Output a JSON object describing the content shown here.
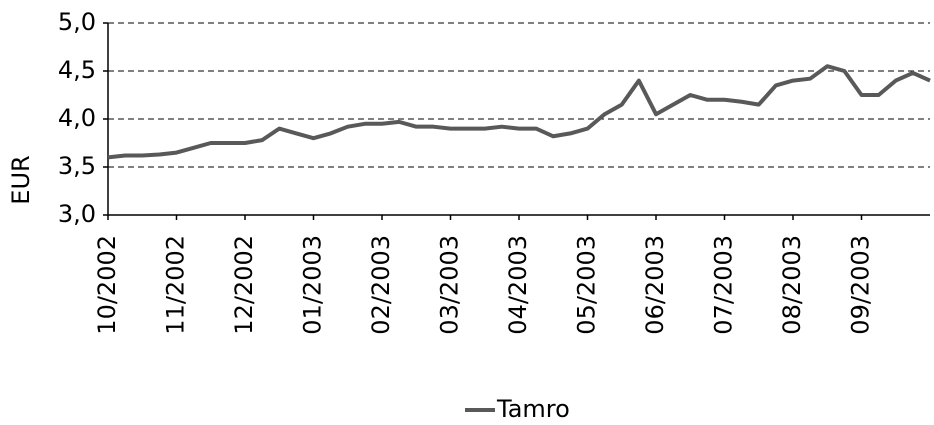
{
  "chart_data": {
    "type": "line",
    "y_label": "EUR",
    "categories": [
      "10/2002",
      null,
      null,
      null,
      "11/2002",
      null,
      null,
      null,
      "12/2002",
      null,
      null,
      null,
      "01/2003",
      null,
      null,
      null,
      "02/2003",
      null,
      null,
      null,
      "03/2003",
      null,
      null,
      null,
      "04/2003",
      null,
      null,
      null,
      "05/2003",
      null,
      null,
      null,
      "06/2003",
      null,
      null,
      null,
      "07/2003",
      null,
      null,
      null,
      "08/2003",
      null,
      null,
      null,
      "09/2003",
      null,
      null,
      null,
      null
    ],
    "series": [
      {
        "name": "Tamro",
        "color": "#595959",
        "values": [
          3.6,
          3.62,
          3.62,
          3.63,
          3.65,
          3.7,
          3.75,
          3.75,
          3.75,
          3.78,
          3.9,
          3.85,
          3.8,
          3.85,
          3.92,
          3.95,
          3.95,
          3.97,
          3.92,
          3.92,
          3.9,
          3.9,
          3.9,
          3.92,
          3.9,
          3.9,
          3.82,
          3.85,
          3.9,
          4.05,
          4.15,
          4.4,
          4.05,
          4.15,
          4.25,
          4.2,
          4.2,
          4.18,
          4.15,
          4.35,
          4.4,
          4.42,
          4.55,
          4.5,
          4.25,
          4.25,
          4.4,
          4.48,
          4.4
        ]
      }
    ],
    "ylim": [
      3,
      5
    ],
    "yticks": [
      {
        "value": 3,
        "label": "3,0"
      },
      {
        "value": 3.5,
        "label": "3,5"
      },
      {
        "value": 4,
        "label": "4,0"
      },
      {
        "value": 4.5,
        "label": "4,5"
      },
      {
        "value": 5,
        "label": "5,0"
      }
    ],
    "grid": true,
    "legend": "bottom"
  }
}
